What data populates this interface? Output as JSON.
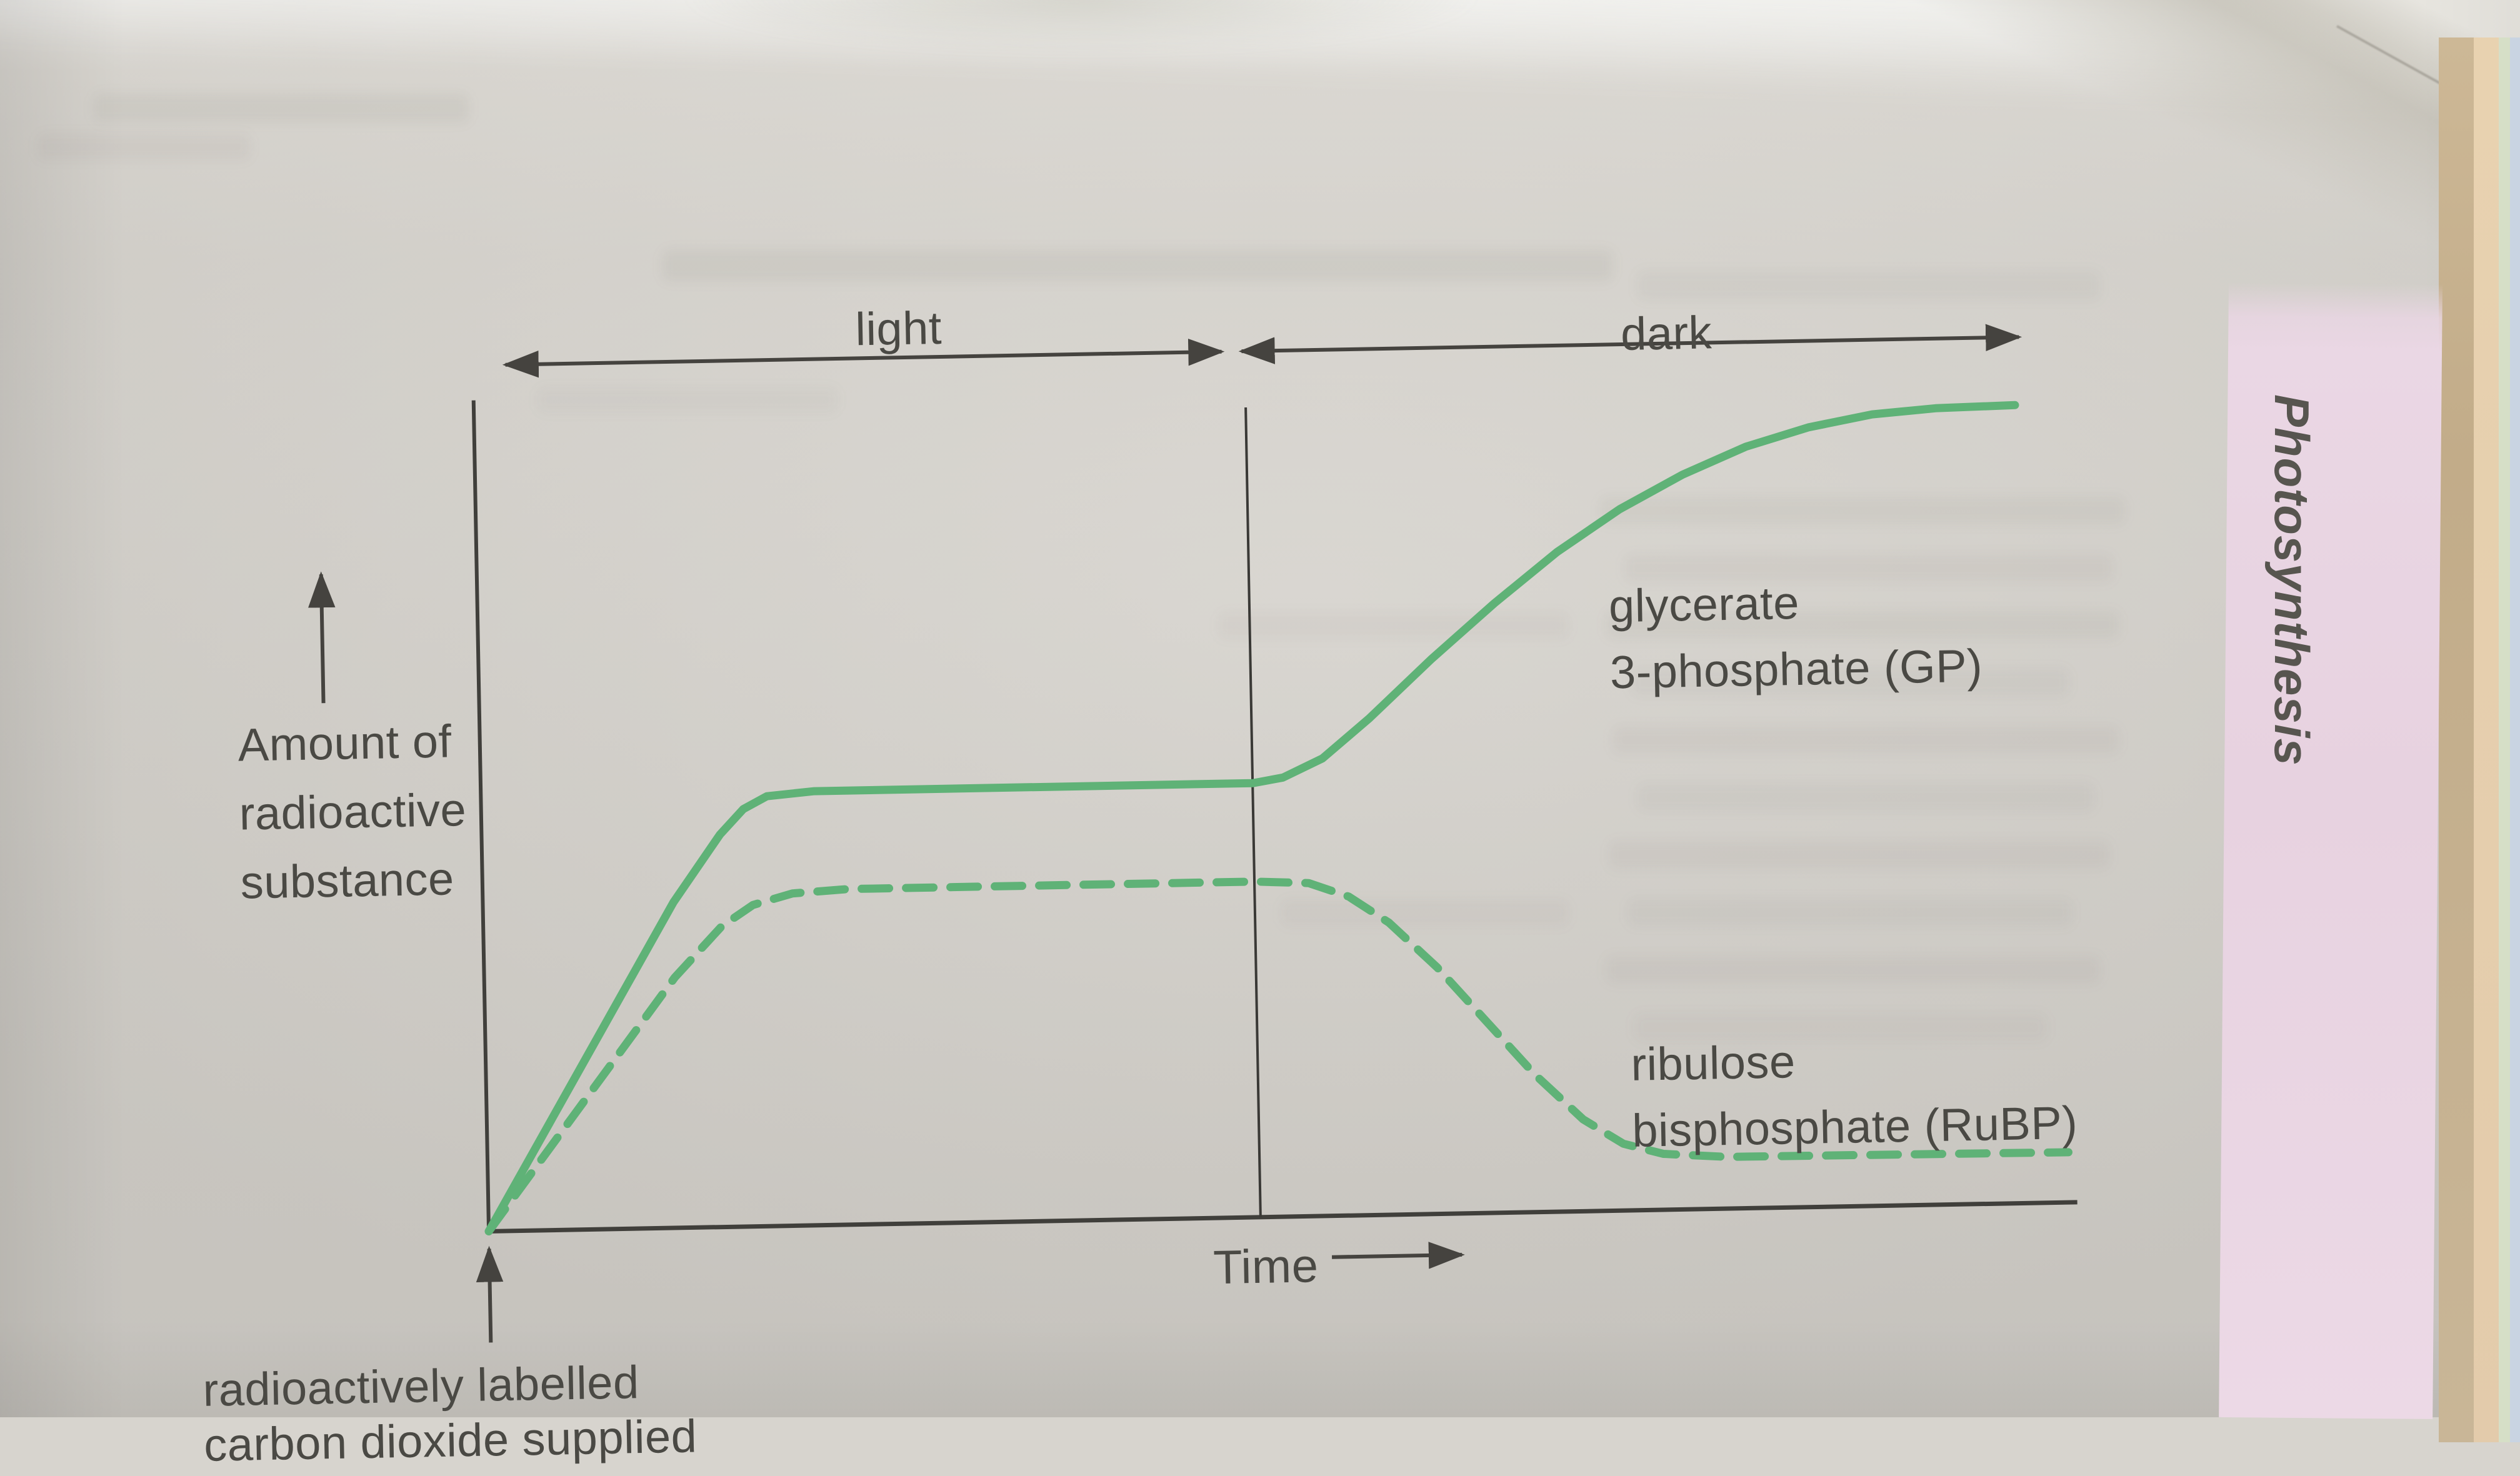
{
  "figure": {
    "period_labels": {
      "light": "light",
      "dark": "dark"
    },
    "y_axis_label_lines": [
      "Amount of",
      "radioactive",
      "substance"
    ],
    "x_axis_label": "Time",
    "bottom_annotation_line1": "radioactively labelled",
    "bottom_annotation_line2": "carbon dioxide supplied",
    "series_labels": {
      "gp_line1": "glycerate",
      "gp_line2": "3-phosphate (GP)",
      "rubp_line1": "ribulose",
      "rubp_line2": "bisphosphate (RuBP)"
    },
    "side_tab_title": "Photosynthesis"
  },
  "colors": {
    "curve_green": "#5fb277",
    "axis_gray": "#403f3b",
    "text_gray": "#4a4944",
    "paper": "#d7d4ce",
    "pink_tab": "#ead7e4"
  },
  "chart_data": {
    "type": "line",
    "title": "",
    "xlabel": "Time",
    "ylabel": "Amount of radioactive substance",
    "x_range_note": "axis unlabeled; x expressed as 0-100 relative time",
    "y_range_note": "axis unlabeled; y expressed as 0-100 relative amount",
    "grid": false,
    "legend_position": "labels beside curves",
    "annotations": {
      "light_period_x": [
        0,
        48.6
      ],
      "dark_period_x": [
        48.6,
        100
      ],
      "supply_marker": "radioactively labelled carbon dioxide supplied at x=0"
    },
    "series": [
      {
        "id": "gp",
        "name": "glycerate 3-phosphate (GP)",
        "style": "solid",
        "points": [
          [
            0,
            0
          ],
          [
            4,
            13
          ],
          [
            8,
            26
          ],
          [
            12,
            39
          ],
          [
            15,
            47
          ],
          [
            16.5,
            50
          ],
          [
            18,
            51.5
          ],
          [
            21,
            52
          ],
          [
            48.6,
            52
          ],
          [
            50.5,
            52.6
          ],
          [
            53,
            54.8
          ],
          [
            56,
            59.5
          ],
          [
            60,
            66.5
          ],
          [
            64,
            73
          ],
          [
            68,
            79
          ],
          [
            72,
            84
          ],
          [
            76,
            88
          ],
          [
            80,
            91.2
          ],
          [
            84,
            93.4
          ],
          [
            88,
            94.8
          ],
          [
            92,
            95.4
          ],
          [
            97,
            95.6
          ]
        ]
      },
      {
        "id": "rubp",
        "name": "ribulose bisphosphate (RuBP)",
        "style": "dashed",
        "points": [
          [
            0,
            0
          ],
          [
            4,
            10
          ],
          [
            8,
            20
          ],
          [
            12,
            30
          ],
          [
            15,
            36
          ],
          [
            17,
            38.5
          ],
          [
            19.5,
            39.8
          ],
          [
            23,
            40.2
          ],
          [
            48.6,
            40.2
          ],
          [
            52,
            39.9
          ],
          [
            54.5,
            38.2
          ],
          [
            57,
            35
          ],
          [
            60,
            29.5
          ],
          [
            63,
            23
          ],
          [
            66,
            16.5
          ],
          [
            69,
            11
          ],
          [
            71.5,
            8
          ],
          [
            74,
            6.7
          ],
          [
            78,
            6.2
          ],
          [
            99.5,
            6
          ]
        ]
      }
    ]
  }
}
